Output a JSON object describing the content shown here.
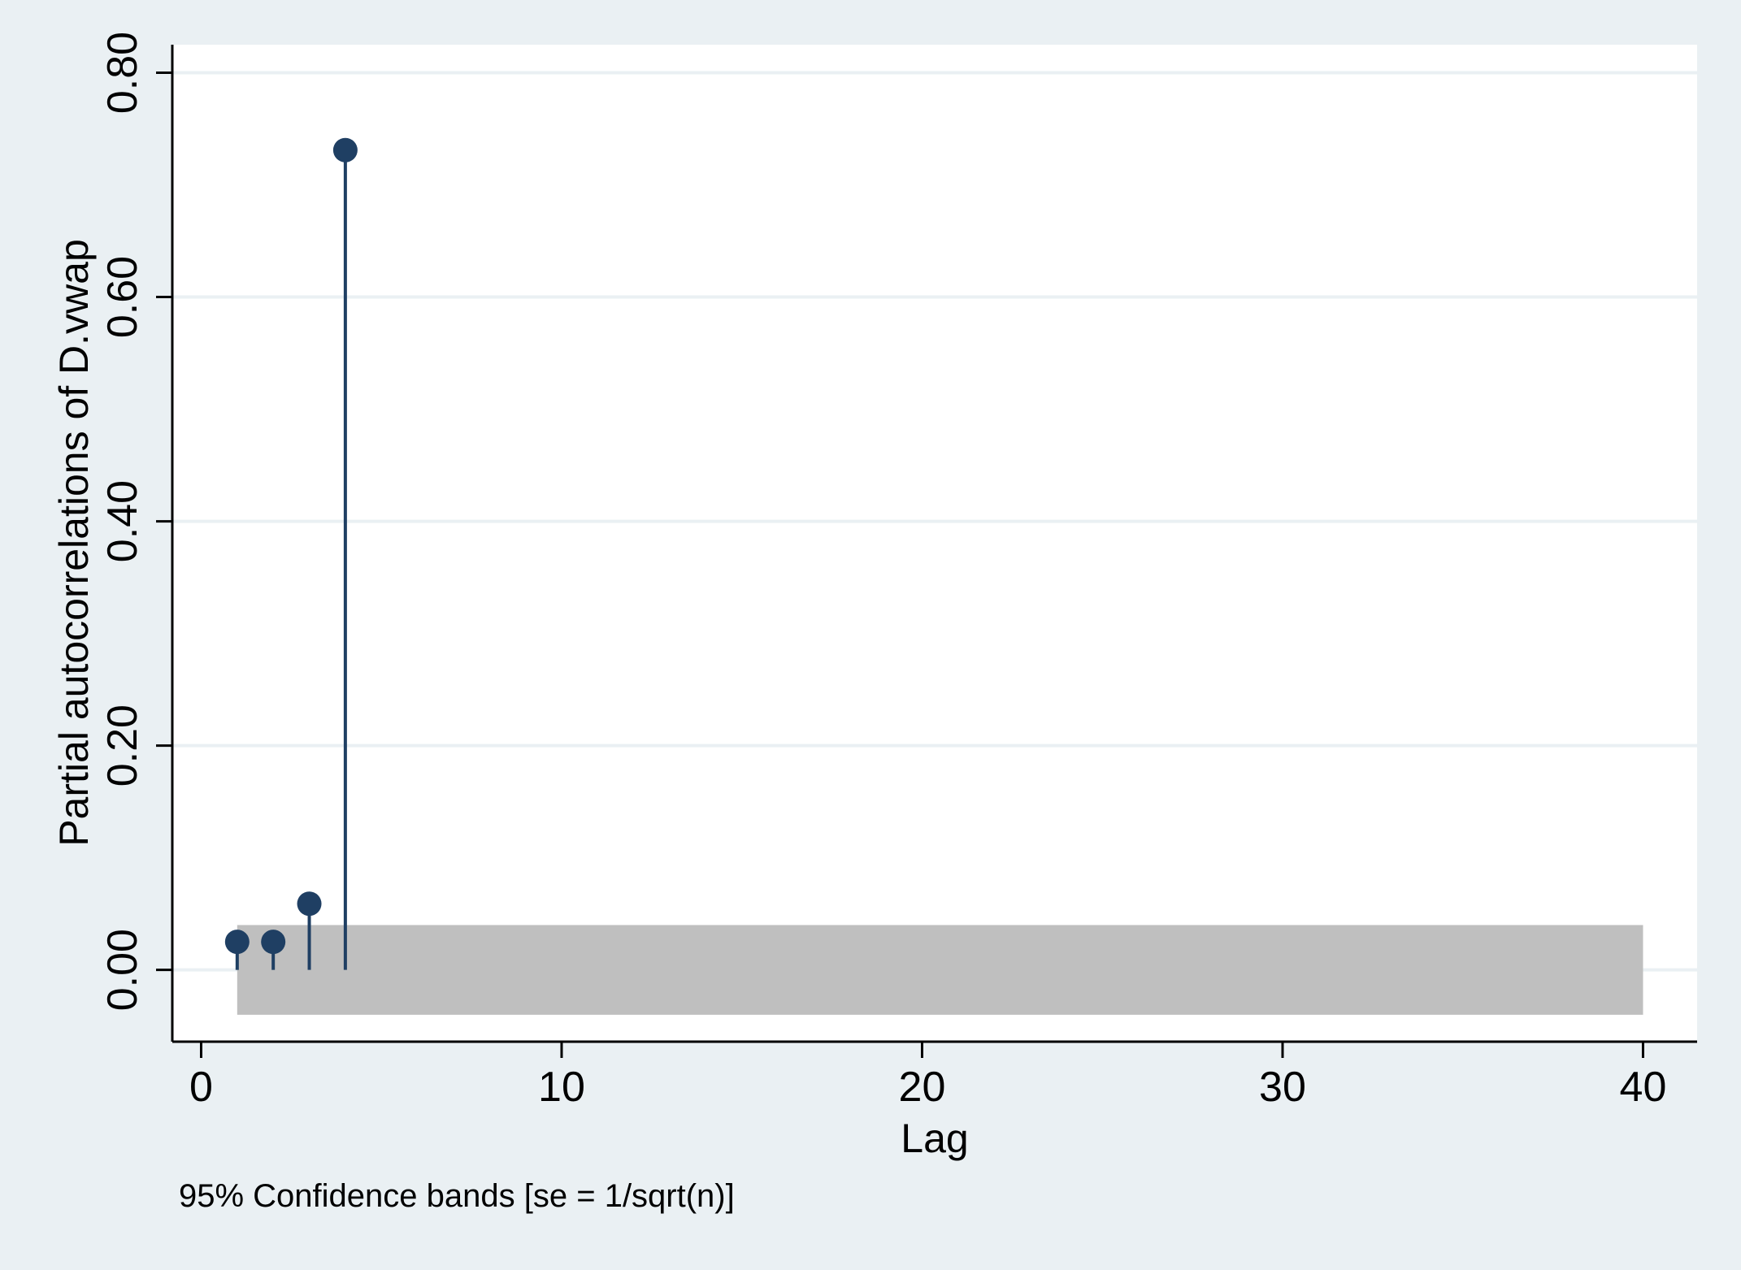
{
  "colors": {
    "outer_background": "#eaf0f3",
    "plot_background": "#ffffff",
    "gridline": "#eaf0f3",
    "marker": "#1f3f63",
    "band": "#bfbfbf",
    "axis": "#000000"
  },
  "chart_data": {
    "type": "scatter",
    "style": "spike plot with markers (partial autocorrelogram)",
    "xlabel": "Lag",
    "ylabel": "Partial autocorrelations of D.vwap",
    "note": "95% Confidence bands [se = 1/sqrt(n)]",
    "xlim": [
      -0.8,
      41.5
    ],
    "ylim": [
      -0.064,
      0.825
    ],
    "x_ticks": [
      0,
      10,
      20,
      30,
      40
    ],
    "x_tick_labels": [
      "0",
      "10",
      "20",
      "30",
      "40"
    ],
    "y_ticks": [
      0,
      0.2,
      0.4,
      0.6,
      0.8
    ],
    "y_tick_labels": [
      "0.00",
      "0.20",
      "0.40",
      "0.60",
      "0.80"
    ],
    "grid": true,
    "legend": "none",
    "series": [
      {
        "x": [
          1,
          2,
          3,
          4
        ],
        "values": [
          0.025,
          0.025,
          0.059,
          0.731
        ]
      }
    ],
    "confidence_band": {
      "x_range": [
        1,
        40
      ],
      "lower": -0.04,
      "upper": 0.04
    }
  }
}
